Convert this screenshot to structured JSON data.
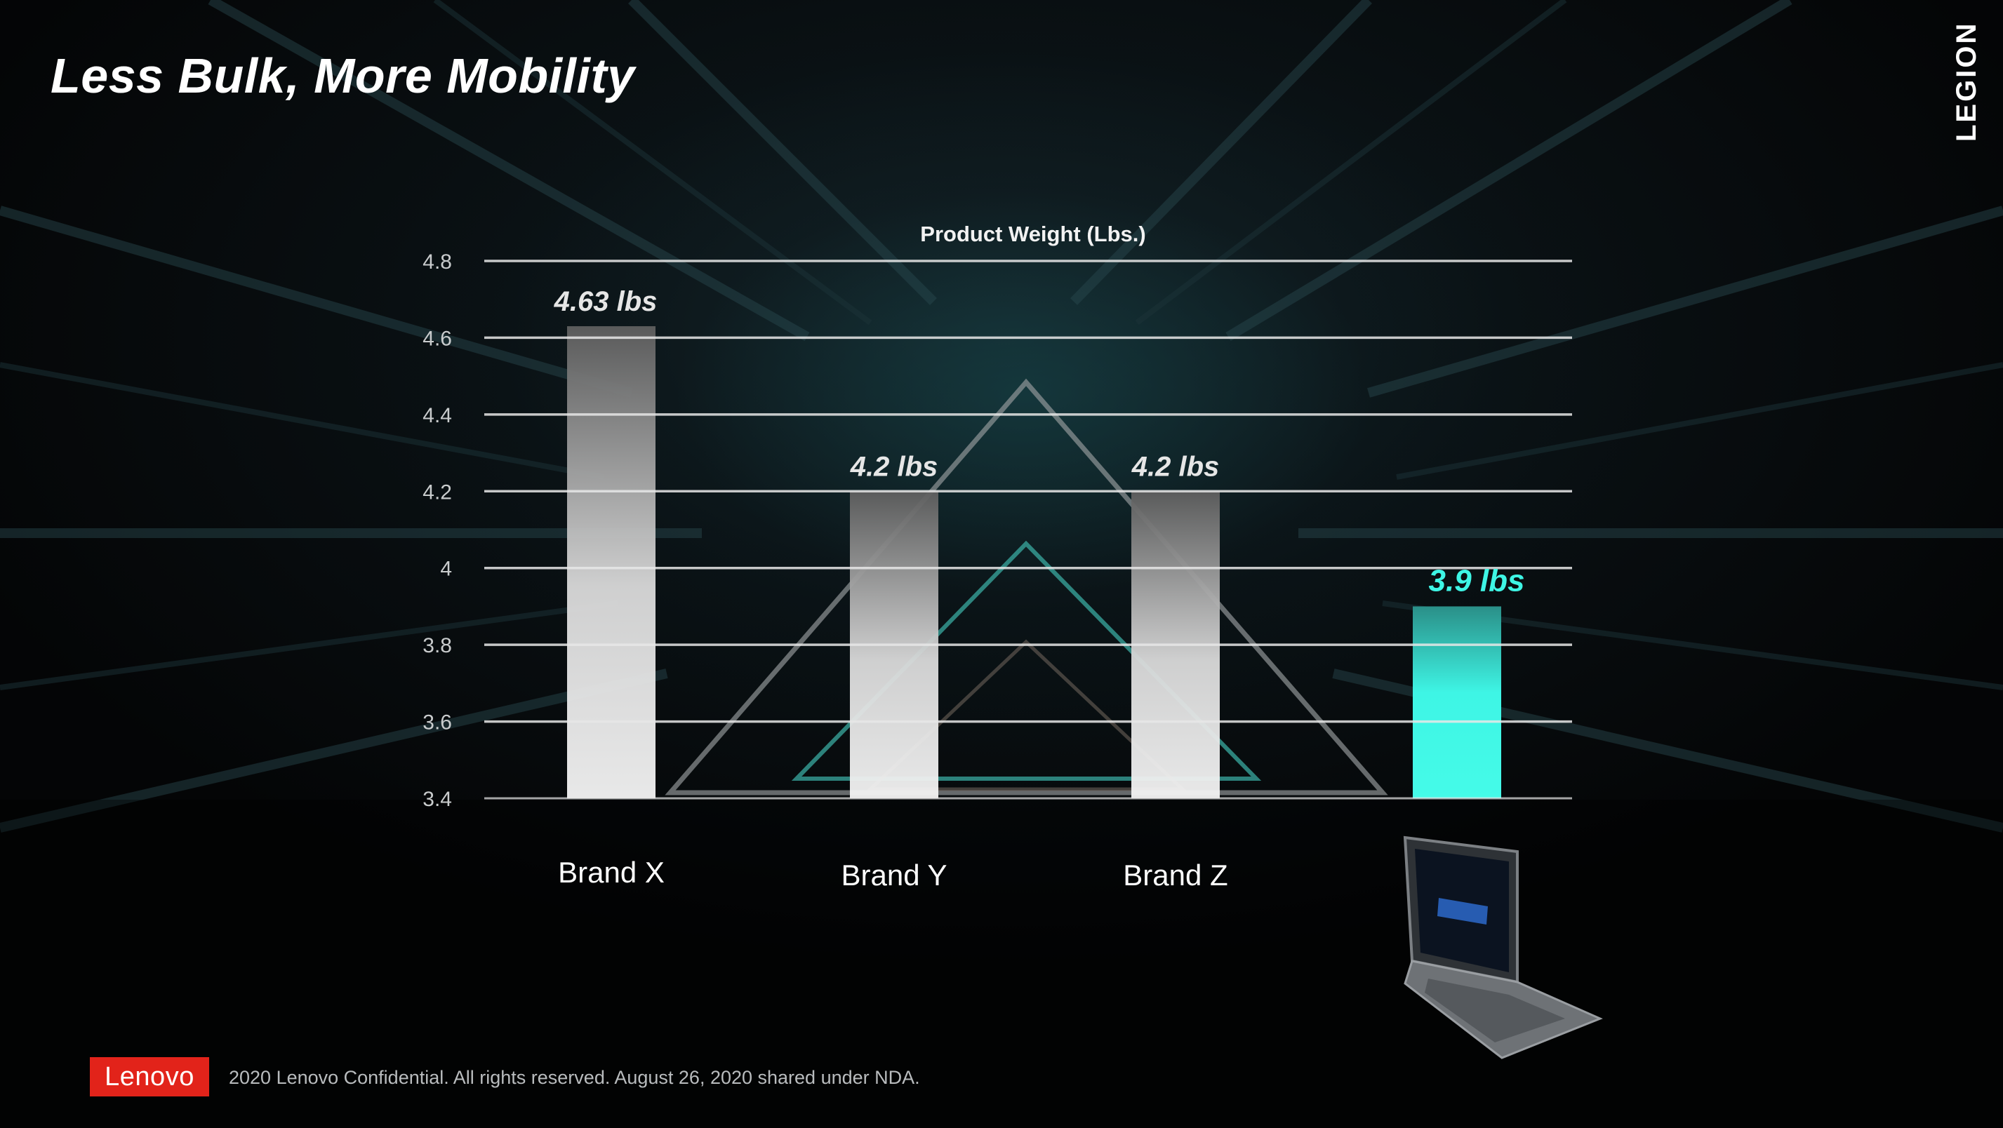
{
  "slide": {
    "title": "Less Bulk, More Mobility",
    "brand_logo": "LEGION",
    "footer": {
      "logo": "Lenovo",
      "text": "2020 Lenovo Confidential. All rights reserved. August 26, 2020 shared under NDA."
    }
  },
  "colors": {
    "bar_gray_top": "#6a6a6a",
    "bar_gray_bottom": "#f2f2f2",
    "bar_highlight": "#3ef5e5",
    "gridline": "#e8e8e8",
    "highlight_label": "#3ef5e5"
  },
  "chart_data": {
    "type": "bar",
    "title": "Product Weight (Lbs.)",
    "xlabel": "",
    "ylabel": "",
    "categories": [
      "Brand X",
      "Brand Y",
      "Brand Z",
      ""
    ],
    "values": [
      4.63,
      4.2,
      4.2,
      3.9
    ],
    "data_labels": [
      "4.63 lbs",
      "4.2 lbs",
      "4.2 lbs",
      "3.9 lbs"
    ],
    "highlight_index": 3,
    "ylim": [
      3.4,
      4.8
    ],
    "yticks": [
      "3.4",
      "3.6",
      "3.8",
      "4",
      "4.2",
      "4.4",
      "4.6",
      "4.8"
    ],
    "ytick_values": [
      3.4,
      3.6,
      3.8,
      4.0,
      4.2,
      4.4,
      4.6,
      4.8
    ],
    "grid": true,
    "legend": "none"
  }
}
